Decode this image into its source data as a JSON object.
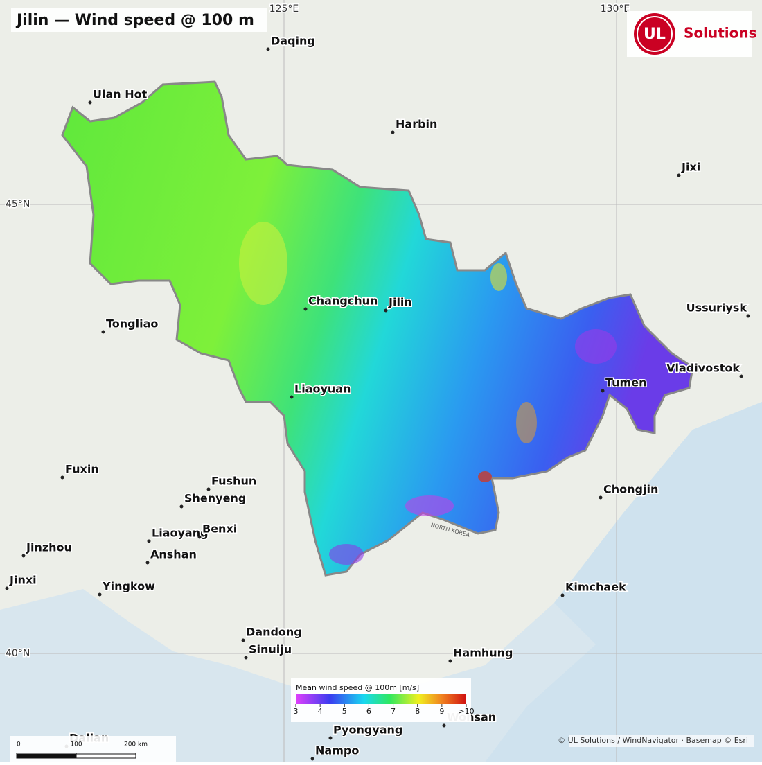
{
  "header": {
    "title": "Jilin — Wind speed @ 100 m"
  },
  "logo": {
    "mark": "UL",
    "text": "Solutions"
  },
  "graticule": {
    "lon": [
      "125°E",
      "130°E"
    ],
    "lat": [
      "45°N",
      "40°N"
    ]
  },
  "cities": [
    "Daqing",
    "Ulan Hot",
    "Harbin",
    "Jixi",
    "Changchun",
    "Jilin",
    "Tongliao",
    "Ussuriysk",
    "Vladivostok",
    "Tumen",
    "Liaoyuan",
    "Fuxin",
    "Fushun",
    "Shenyeng",
    "Chongjin",
    "Liaoyang",
    "Benxi",
    "Anshan",
    "Jinzhou",
    "Jinxi",
    "Yingkow",
    "Kimchaek",
    "Dandong",
    "Sinuiju",
    "Hamhung",
    "Wonsan",
    "Pyongyang",
    "Nampo",
    "Dalian"
  ],
  "region_labels": [
    "NORTH KOREA"
  ],
  "legend": {
    "title": "Mean wind speed @ 100m  [m/s]",
    "range": [
      3,
      10
    ],
    "ticks": [
      3,
      4,
      5,
      6,
      7,
      8,
      9,
      {
        "value": 10,
        "label": ">10"
      }
    ]
  },
  "scale_bar": {
    "range": [
      0,
      200
    ],
    "ticks": [
      0,
      100,
      {
        "value": 200,
        "label": "200 km"
      }
    ]
  },
  "attribution": "© UL Solutions / WindNavigator · Basemap © Esri"
}
